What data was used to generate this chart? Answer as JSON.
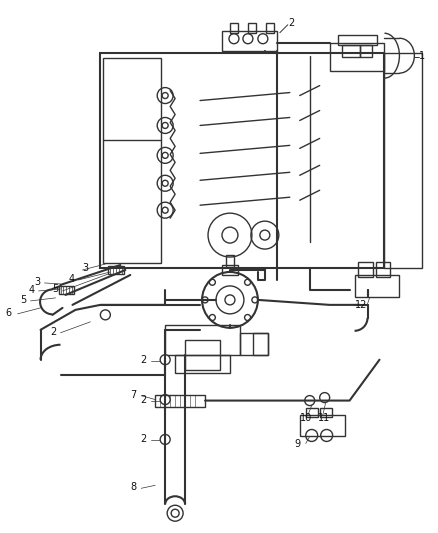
{
  "bg_color": "#ffffff",
  "line_color": "#333333",
  "label_color": "#111111",
  "figsize": [
    4.38,
    5.33
  ],
  "dpi": 100
}
